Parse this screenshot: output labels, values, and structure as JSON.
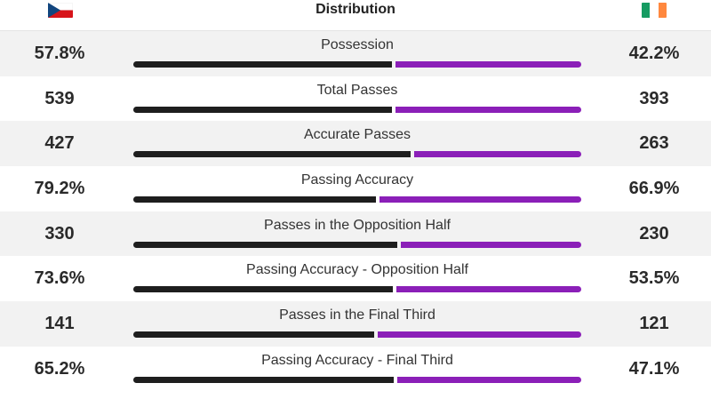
{
  "header": {
    "title": "Distribution",
    "home_flag": "czech-flag",
    "away_flag": "ireland-flag"
  },
  "colors": {
    "home_bar": "#1e1e1e",
    "away_bar": "#8b1fb8",
    "row_shade": "#f2f2f2"
  },
  "stats": [
    {
      "label": "Possession",
      "home": "57.8%",
      "away": "42.2%",
      "home_share": 0.578
    },
    {
      "label": "Total Passes",
      "home": "539",
      "away": "393",
      "home_share": 0.578
    },
    {
      "label": "Accurate Passes",
      "home": "427",
      "away": "263",
      "home_share": 0.619
    },
    {
      "label": "Passing Accuracy",
      "home": "79.2%",
      "away": "66.9%",
      "home_share": 0.542
    },
    {
      "label": "Passes in the Opposition Half",
      "home": "330",
      "away": "230",
      "home_share": 0.589
    },
    {
      "label": "Passing Accuracy - Opposition Half",
      "home": "73.6%",
      "away": "53.5%",
      "home_share": 0.579
    },
    {
      "label": "Passes in the Final Third",
      "home": "141",
      "away": "121",
      "home_share": 0.538
    },
    {
      "label": "Passing Accuracy - Final Third",
      "home": "65.2%",
      "away": "47.1%",
      "home_share": 0.581
    }
  ]
}
